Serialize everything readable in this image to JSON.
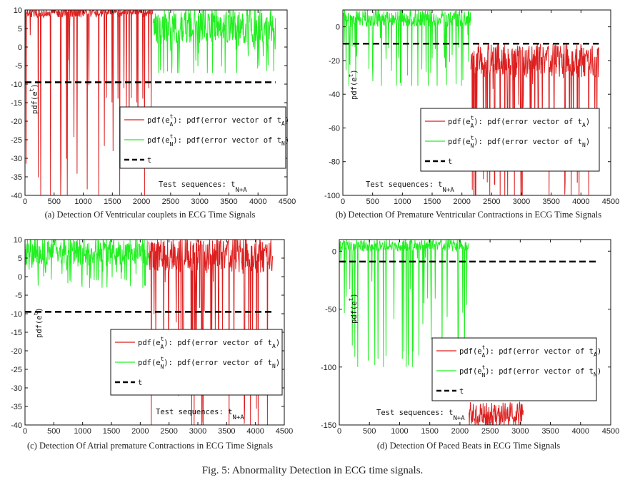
{
  "figure_caption": "Fig. 5: Abnormality Detection in ECG time signals.",
  "colors": {
    "red_series": "#dd1f1f",
    "green_series": "#22ee22",
    "threshold": "#000000"
  },
  "chart_data": [
    {
      "type": "line",
      "caption": "(a) Detection Of Ventricular couplets in ECG Time Signals",
      "ylabel": "pdf(e",
      "ylabel_sup": "t",
      "xlim": [
        0,
        4500
      ],
      "ylim": [
        -40,
        10
      ],
      "xticks": [
        0,
        500,
        1000,
        1500,
        2000,
        2500,
        3000,
        3500,
        4000,
        4500
      ],
      "yticks": [
        10,
        5,
        0,
        -5,
        -10,
        -15,
        -20,
        -25,
        -30,
        -35,
        -40
      ],
      "threshold": -9.5,
      "series": [
        {
          "color": "red",
          "x_range": [
            0,
            2200
          ],
          "baseline_range": [
            8,
            10.5
          ],
          "dips_to": -40
        },
        {
          "color": "green",
          "x_range": [
            2200,
            4300
          ],
          "baseline_range": [
            1,
            10.5
          ],
          "dips_to": -7
        }
      ],
      "legend": [
        {
          "main": "pdf(e",
          "sub": "A",
          "sup": "t",
          "rest": "): pdf(error vector of t",
          "tail": "A",
          "close": ")"
        },
        {
          "main": "pdf(e",
          "sub": "N",
          "sup": "t",
          "rest": "): pdf(error vector of t",
          "tail": "N",
          "close": ")"
        },
        {
          "main": "t",
          "sub": "",
          "sup": "",
          "rest": "",
          "tail": "",
          "close": ""
        }
      ],
      "annotation": {
        "text": "Test sequences: t",
        "sub": "N+A"
      }
    },
    {
      "type": "line",
      "caption": "(b) Detection Of Premature Ventricular Contractions in ECG Time Signals",
      "ylabel": "pdf(e",
      "ylabel_sup": "t",
      "xlim": [
        0,
        4500
      ],
      "ylim": [
        -100,
        10
      ],
      "xticks": [
        0,
        500,
        1000,
        1500,
        2000,
        2500,
        3000,
        3500,
        4000,
        4500
      ],
      "yticks": [
        0,
        -20,
        -40,
        -60,
        -80,
        -100
      ],
      "threshold": -10,
      "series": [
        {
          "color": "green",
          "x_range": [
            0,
            2150
          ],
          "baseline_range": [
            0,
            10
          ],
          "dips_to": -35
        },
        {
          "color": "red",
          "x_range": [
            2150,
            4300
          ],
          "baseline_range": [
            -30,
            -10
          ],
          "dips_to": -100
        }
      ],
      "legend": [
        {
          "main": "pdf(e",
          "sub": "A",
          "sup": "t",
          "rest": "): pdf(error vector of t",
          "tail": "A",
          "close": ")"
        },
        {
          "main": "pdf(e",
          "sub": "N",
          "sup": "t",
          "rest": "): pdf(error vector of t",
          "tail": "N",
          "close": ")"
        },
        {
          "main": "t",
          "sub": "",
          "sup": "",
          "rest": "",
          "tail": "",
          "close": ""
        }
      ],
      "annotation": {
        "text": "Test sequences: t",
        "sub": "N+A"
      }
    },
    {
      "type": "line",
      "caption": "(c) Detection Of Atrial premature Contractions in ECG Time Signals",
      "ylabel": "pdf(e",
      "ylabel_sup": "t",
      "xlim": [
        0,
        4500
      ],
      "ylim": [
        -40,
        10
      ],
      "xticks": [
        0,
        500,
        1000,
        1500,
        2000,
        2500,
        3000,
        3500,
        4000,
        4500
      ],
      "yticks": [
        10,
        5,
        0,
        -5,
        -10,
        -15,
        -20,
        -25,
        -30,
        -35,
        -40
      ],
      "threshold": -9.5,
      "series": [
        {
          "color": "green",
          "x_range": [
            0,
            2150
          ],
          "baseline_range": [
            3,
            10.5
          ],
          "dips_to": -3
        },
        {
          "color": "red",
          "x_range": [
            2150,
            4300
          ],
          "baseline_range": [
            1,
            10.5
          ],
          "dips_to": -40
        }
      ],
      "legend": [
        {
          "main": "pdf(e",
          "sub": "A",
          "sup": "t",
          "rest": "): pdf(error vector of t",
          "tail": "A",
          "close": ")"
        },
        {
          "main": "pdf(e",
          "sub": "N",
          "sup": "t",
          "rest": "): pdf(error vector of t",
          "tail": "N",
          "close": ")"
        },
        {
          "main": "t",
          "sub": "",
          "sup": "",
          "rest": "",
          "tail": "",
          "close": ""
        }
      ],
      "annotation": {
        "text": "Test sequences: t",
        "sub": "N+A"
      }
    },
    {
      "type": "line",
      "caption": "(d) Detection Of Paced Beats in ECG Time Signals",
      "ylabel": "pdf(e",
      "ylabel_sup": "t",
      "xlim": [
        0,
        4500
      ],
      "ylim": [
        -150,
        10
      ],
      "xticks": [
        0,
        500,
        1000,
        1500,
        2000,
        2500,
        3000,
        3500,
        4000,
        4500
      ],
      "yticks": [
        0,
        -50,
        -100,
        -150
      ],
      "threshold": -9,
      "series": [
        {
          "color": "green",
          "x_range": [
            0,
            2150
          ],
          "baseline_range": [
            0,
            10
          ],
          "dips_to": -100
        },
        {
          "color": "red",
          "x_range": [
            2150,
            3050
          ],
          "baseline_range": [
            -150,
            -130
          ],
          "dips_to": -150
        }
      ],
      "legend": [
        {
          "main": "pdf(e",
          "sub": "A",
          "sup": "t",
          "rest": "): pdf(error vector of t",
          "tail": "A",
          "close": ")"
        },
        {
          "main": "pdf(e",
          "sub": "N",
          "sup": "t",
          "rest": "): pdf(error vector of t",
          "tail": "N",
          "close": ")"
        },
        {
          "main": "t",
          "sub": "",
          "sup": "",
          "rest": "",
          "tail": "",
          "close": ""
        }
      ],
      "annotation": {
        "text": "Test sequences: t",
        "sub": "N+A"
      }
    }
  ]
}
